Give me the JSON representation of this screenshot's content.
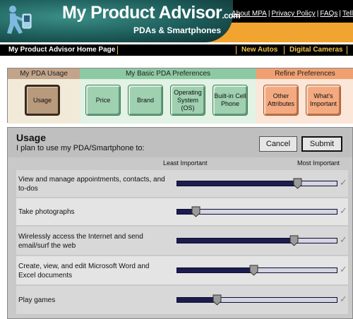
{
  "header": {
    "brand": "My Product Advisor",
    "brand_suffix": ".com",
    "subtitle": "PDAs & Smartphones",
    "links": [
      "About MPA",
      "Privacy Policy",
      "FAQs",
      "Tell A"
    ]
  },
  "nav": {
    "home": "My Product Advisor Home Page",
    "items": [
      "New Autos",
      "Digital Cameras"
    ]
  },
  "prefs": {
    "usage_heading": "My PDA Usage",
    "basic_heading": "My Basic PDA Preferences",
    "refine_heading": "Refine Preferences",
    "usage_button": "Usage",
    "basic_buttons": [
      "Price",
      "Brand",
      "Operating System (OS)",
      "Built-in Cell Phone"
    ],
    "refine_buttons": [
      "Other Attributes",
      "What's Important"
    ]
  },
  "usage": {
    "title": "Usage",
    "subtitle": "I plan to use my PDA/Smartphone to:",
    "cancel": "Cancel",
    "submit": "Submit",
    "least": "Least Important",
    "most": "Most Important",
    "check_glyph": "✓",
    "rows": [
      {
        "label": "View and manage appointments, contacts, and to-dos",
        "importance": 0.75
      },
      {
        "label": "Take photographs",
        "importance": 0.12
      },
      {
        "label": "Wirelessly access the Internet and send email/surf the web",
        "importance": 0.73
      },
      {
        "label": "Create, view, and edit Microsoft Word and Excel documents",
        "importance": 0.48
      },
      {
        "label": "Play games",
        "importance": 0.25
      }
    ]
  },
  "colors": {
    "header_teal": "#1d5c5a",
    "header_orange": "#f2a430",
    "nav_accent": "#f2c34a",
    "slider_track": "#1c1c4e"
  }
}
